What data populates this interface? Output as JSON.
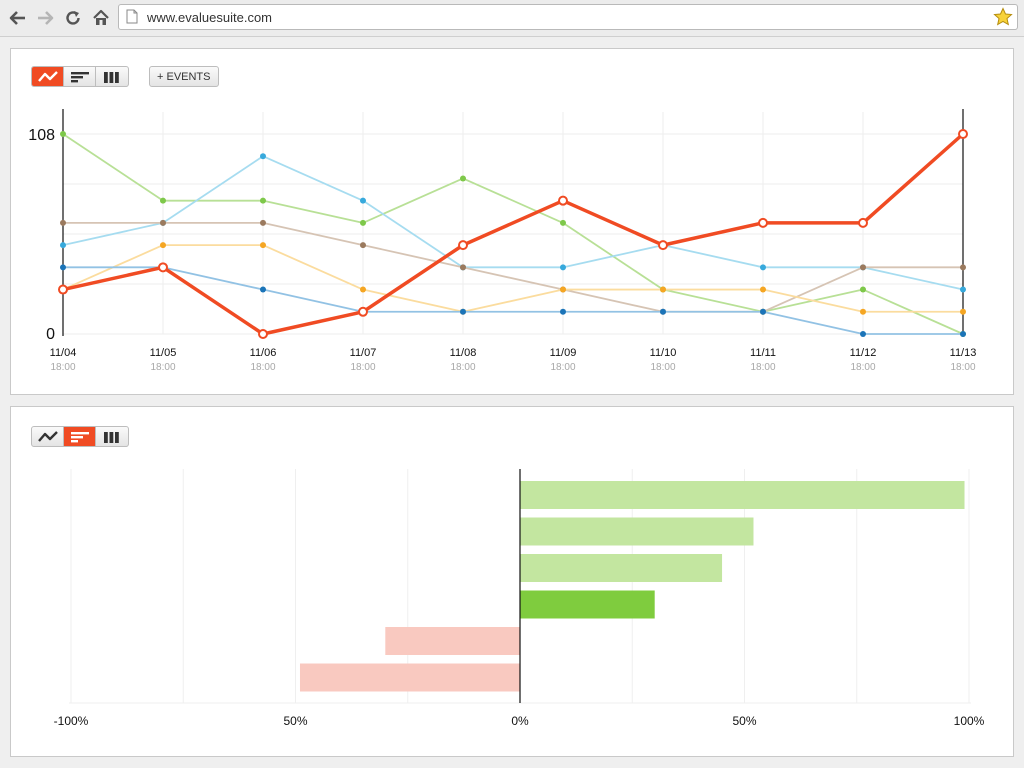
{
  "browser": {
    "url": "www.evaluesuite.com",
    "icons": [
      "back-arrow-icon",
      "forward-arrow-icon",
      "reload-icon",
      "home-icon",
      "page-icon",
      "bookmark-star-icon"
    ]
  },
  "panel1": {
    "toolbar": {
      "views": [
        "line-chart-icon",
        "bar-chart-icon",
        "column-chart-icon"
      ],
      "active_view": "line",
      "events_label": "+ EVENTS"
    }
  },
  "panel2": {
    "toolbar": {
      "views": [
        "line-chart-icon",
        "bar-chart-icon",
        "column-chart-icon"
      ],
      "active_view": "bar"
    }
  },
  "colors": {
    "accent": "#f04b23",
    "positive": "#c3e6a0",
    "positive_highlight": "#7fcc3e",
    "negative": "#f9c9c0"
  },
  "chart_data": [
    {
      "type": "line",
      "x": [
        "11/04",
        "11/05",
        "11/06",
        "11/07",
        "11/08",
        "11/09",
        "11/10",
        "11/11",
        "11/12",
        "11/13"
      ],
      "x_sublabels": [
        "18:00",
        "18:00",
        "18:00",
        "18:00",
        "18:00",
        "18:00",
        "18:00",
        "18:00",
        "18:00",
        "18:00"
      ],
      "ylim": [
        0,
        108
      ],
      "yticks": [
        "0",
        "108"
      ],
      "grid": true,
      "series": [
        {
          "color": "#b8e096",
          "highlight": false,
          "dot": "#7ec84a",
          "values": [
            108,
            72,
            72,
            60,
            84,
            60,
            24,
            12,
            24,
            0
          ]
        },
        {
          "color": "#a6dcf0",
          "highlight": false,
          "dot": "#37a9dc",
          "values": [
            48,
            60,
            96,
            72,
            36,
            36,
            48,
            36,
            36,
            24
          ]
        },
        {
          "color": "#d6c4b4",
          "highlight": false,
          "dot": "#9b7a5e",
          "values": [
            60,
            60,
            60,
            48,
            36,
            24,
            12,
            12,
            36,
            36
          ]
        },
        {
          "color": "#fbdc9e",
          "highlight": false,
          "dot": "#f5a623",
          "values": [
            24,
            48,
            48,
            24,
            12,
            24,
            24,
            24,
            12,
            12
          ]
        },
        {
          "color": "#92c2e4",
          "highlight": false,
          "dot": "#1b74b8",
          "values": [
            36,
            36,
            24,
            12,
            12,
            12,
            12,
            12,
            0,
            0
          ]
        },
        {
          "color": "#f04b23",
          "highlight": true,
          "dot": "#f04b23",
          "values": [
            24,
            36,
            0,
            12,
            48,
            72,
            48,
            60,
            60,
            108
          ]
        }
      ]
    },
    {
      "type": "bar",
      "orientation": "horizontal",
      "values": [
        0.99,
        0.52,
        0.45,
        0.3,
        -0.3,
        -0.49
      ],
      "highlight_index": 3,
      "xlim": [
        -1,
        1
      ],
      "xticks": [
        "-100%",
        "50%",
        "0%",
        "50%",
        "100%"
      ],
      "grid": true
    }
  ]
}
